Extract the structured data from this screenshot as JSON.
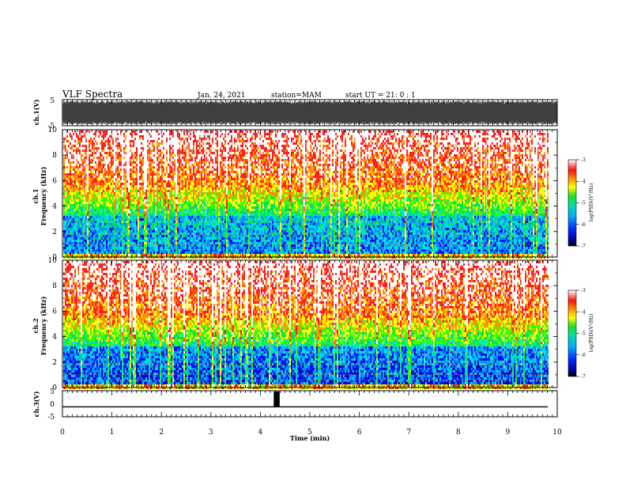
{
  "header": {
    "title": "VLF Spectra",
    "date": "Jan. 24, 2021",
    "station": "station=MAM",
    "start": "start  UT =  21: 0  : 1"
  },
  "chart_data": [
    {
      "type": "line",
      "panel": "ch1-waveform",
      "ylabel": "ch.1(V)",
      "ylim": [
        -5,
        5
      ],
      "yticks": [
        "5",
        "-5"
      ],
      "xlim": [
        0,
        10
      ]
    },
    {
      "type": "heatmap",
      "panel": "ch1-spectrogram",
      "ylabel": "ch.1\nFrequency (kHz)",
      "ylim": [
        0,
        10
      ],
      "yticks": [
        "0",
        "2",
        "4",
        "6",
        "8",
        "10"
      ],
      "colorbar": {
        "label": "log(PSD)(V²/Hz)",
        "range": [
          -7,
          -3
        ],
        "ticks": [
          "-3",
          "-4",
          "-5",
          "-6",
          "-7"
        ]
      }
    },
    {
      "type": "heatmap",
      "panel": "ch2-spectrogram",
      "ylabel": "ch.2\nFrequency (kHz)",
      "ylim": [
        0,
        10
      ],
      "yticks": [
        "0",
        "2",
        "4",
        "6",
        "8",
        "10"
      ],
      "colorbar": {
        "label": "log(PSD)(V²/Hz)",
        "range": [
          -7,
          -3
        ],
        "ticks": [
          "-3",
          "-4",
          "-5",
          "-6",
          "-7"
        ]
      }
    },
    {
      "type": "line",
      "panel": "ch3-waveform",
      "ylabel": "ch.3(V)",
      "ylim": [
        -5,
        5
      ],
      "yticks": [
        "5",
        "0",
        "-5"
      ],
      "baseline": -1.2,
      "pulse": {
        "x": [
          4.27,
          4.39
        ],
        "y": 5
      },
      "xlabel": "Time  (min)",
      "xlim": [
        0,
        10
      ],
      "xticks": [
        "0",
        "1",
        "2",
        "3",
        "4",
        "5",
        "6",
        "7",
        "8",
        "9",
        "10"
      ]
    }
  ],
  "colors": {
    "scale": [
      "#0000b0",
      "#0010ff",
      "#0090ff",
      "#00e0e0",
      "#00e060",
      "#40ff00",
      "#ffff00",
      "#ff9000",
      "#ff2020",
      "#ffffff"
    ]
  }
}
